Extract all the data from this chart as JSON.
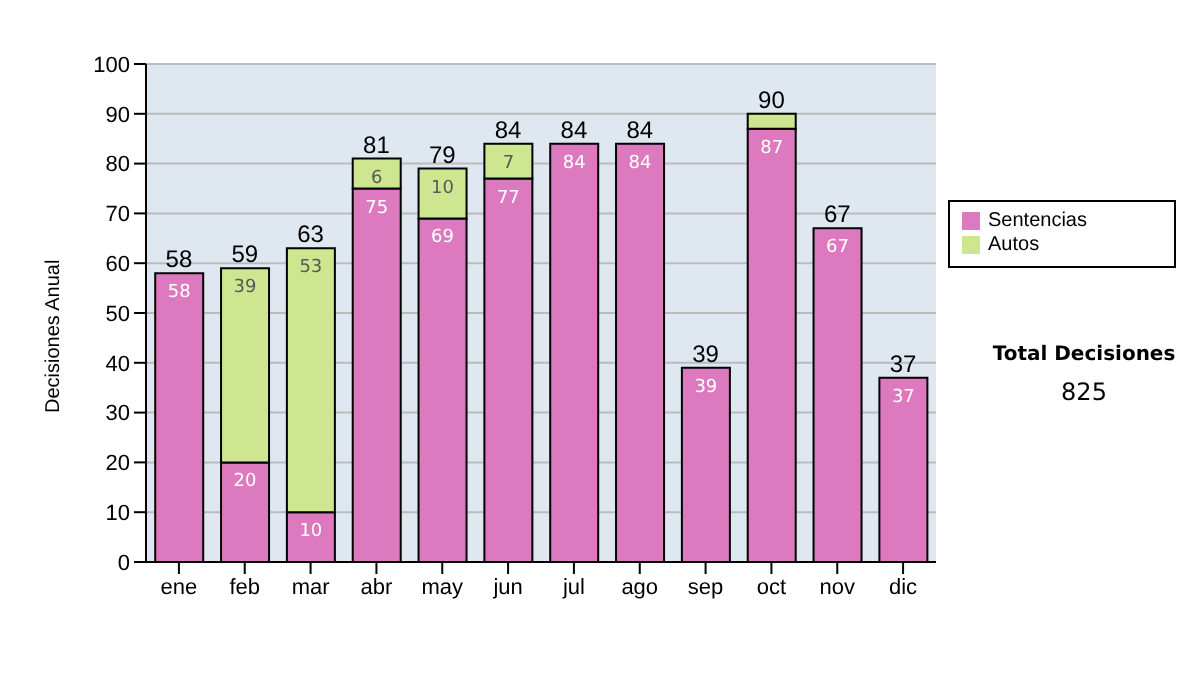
{
  "chart_data": {
    "type": "bar",
    "stacked": true,
    "ylabel": "Decisiones Anual",
    "categories": [
      "ene",
      "feb",
      "mar",
      "abr",
      "may",
      "jun",
      "jul",
      "ago",
      "sep",
      "oct",
      "nov",
      "dic"
    ],
    "series": [
      {
        "name": "Sentencias",
        "color": "#dd7abf",
        "values": [
          58,
          20,
          10,
          75,
          69,
          77,
          84,
          84,
          39,
          87,
          67,
          37
        ],
        "value_labels": [
          "58",
          "20",
          "10",
          "75",
          "69",
          "77",
          "84",
          "84",
          "39",
          "87",
          "67",
          "37"
        ]
      },
      {
        "name": "Autos",
        "color": "#cde68f",
        "values": [
          0,
          39,
          53,
          6,
          10,
          7,
          0,
          0,
          0,
          3,
          0,
          0
        ],
        "value_labels": [
          null,
          "39",
          "53",
          "6",
          "10",
          "7",
          null,
          null,
          null,
          null,
          null,
          null
        ]
      }
    ],
    "totals": [
      "58",
      "59",
      "63",
      "81",
      "79",
      "84",
      "84",
      "84",
      "39",
      "90",
      "67",
      "37"
    ],
    "ylim": [
      0,
      100
    ],
    "yticks": [
      0,
      10,
      20,
      30,
      40,
      50,
      60,
      70,
      80,
      90,
      100
    ],
    "grid": "y",
    "legend": "right",
    "annotations": [
      "Total Decisiones",
      "825"
    ]
  }
}
